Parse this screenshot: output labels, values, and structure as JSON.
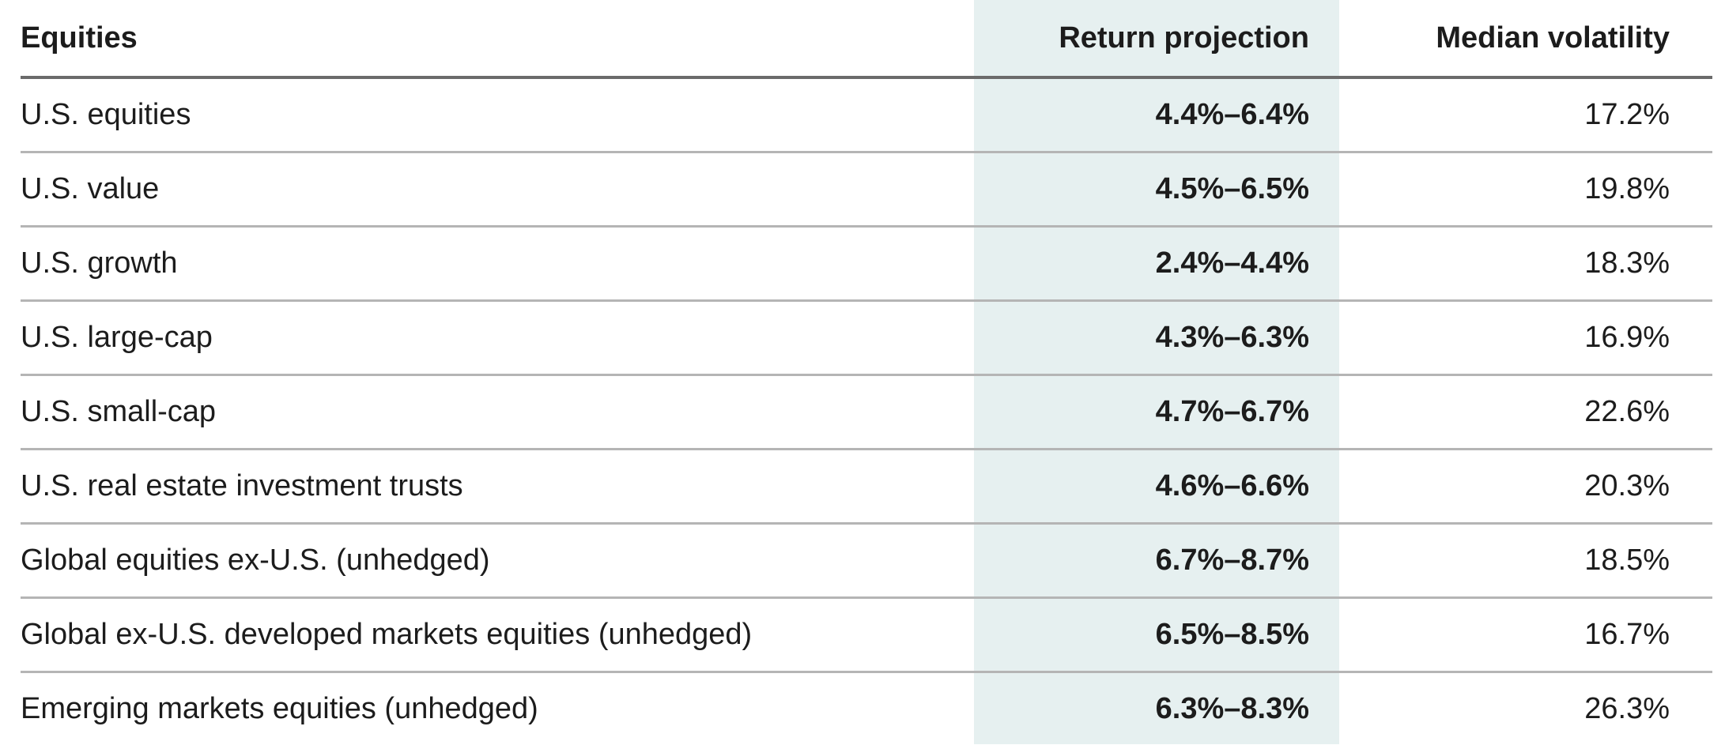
{
  "table": {
    "headers": {
      "name": "Equities",
      "return": "Return projection",
      "volatility": "Median volatility"
    },
    "highlight_color": "#e6f0f0",
    "rows": [
      {
        "name": "U.S. equities",
        "return": "4.4%–6.4%",
        "volatility": "17.2%"
      },
      {
        "name": "U.S. value",
        "return": "4.5%–6.5%",
        "volatility": "19.8%"
      },
      {
        "name": "U.S. growth",
        "return": "2.4%–4.4%",
        "volatility": "18.3%"
      },
      {
        "name": "U.S. large-cap",
        "return": "4.3%–6.3%",
        "volatility": "16.9%"
      },
      {
        "name": "U.S. small-cap",
        "return": "4.7%–6.7%",
        "volatility": "22.6%"
      },
      {
        "name": "U.S. real estate investment trusts",
        "return": "4.6%–6.6%",
        "volatility": "20.3%"
      },
      {
        "name": "Global equities ex-U.S. (unhedged)",
        "return": "6.7%–8.7%",
        "volatility": "18.5%"
      },
      {
        "name": "Global ex-U.S. developed markets equities (unhedged)",
        "return": "6.5%–8.5%",
        "volatility": "16.7%"
      },
      {
        "name": "Emerging markets equities (unhedged)",
        "return": "6.3%–8.3%",
        "volatility": "26.3%"
      }
    ]
  }
}
